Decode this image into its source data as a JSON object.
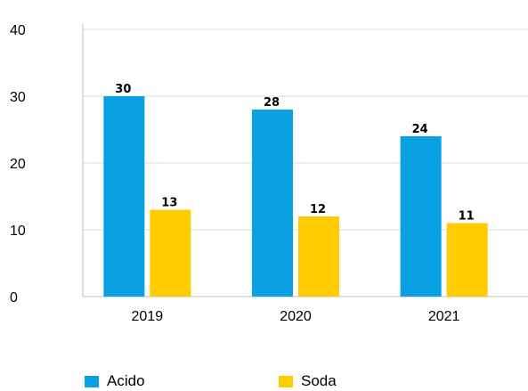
{
  "chart_data": {
    "type": "bar",
    "categories": [
      "2019",
      "2020",
      "2021"
    ],
    "series": [
      {
        "name": "Acido",
        "values": [
          30,
          28,
          24
        ],
        "color": "#0aa1e2"
      },
      {
        "name": "Soda",
        "values": [
          13,
          12,
          11
        ],
        "color": "#ffcc00"
      }
    ],
    "title": "",
    "xlabel": "",
    "ylabel": "",
    "ylim": [
      0,
      40
    ],
    "yticks": [
      "0",
      "10",
      "20",
      "30",
      "40"
    ],
    "grid": true,
    "legend_position": "bottom-left",
    "data_labels": true
  }
}
